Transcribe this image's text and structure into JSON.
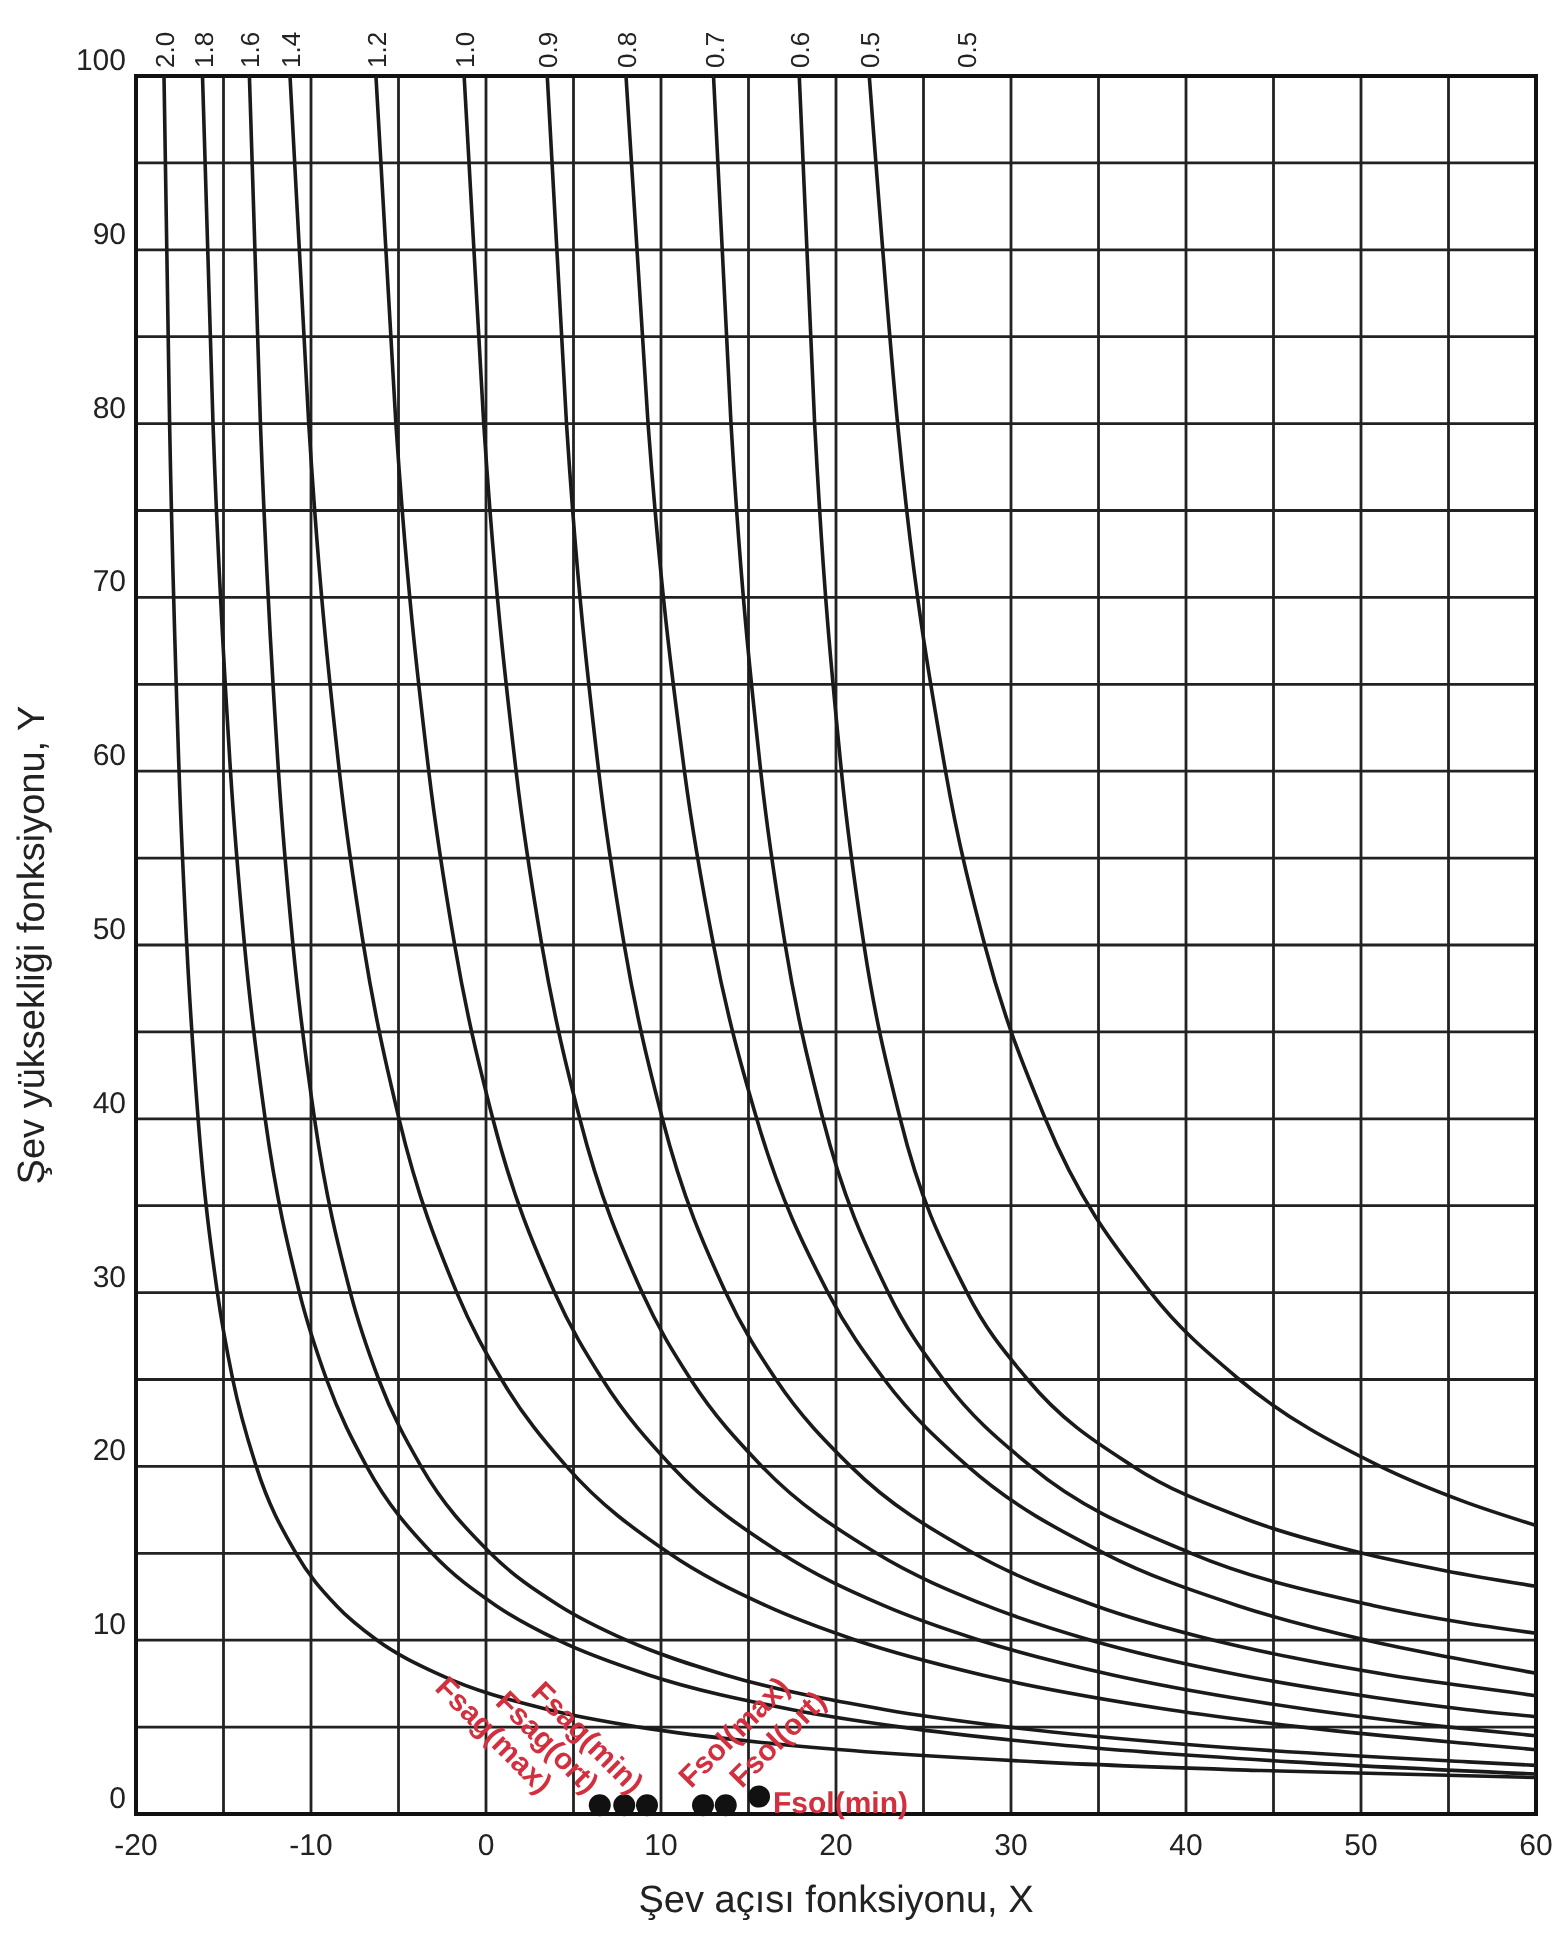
{
  "chart_data": {
    "type": "line",
    "xlabel": "Şev açısı fonksiyonu, X",
    "ylabel": "Şev yüksekliği fonksiyonu, Y",
    "xlim": [
      -20,
      60
    ],
    "ylim": [
      0,
      100
    ],
    "xticks": [
      -20,
      {
        "value": -15,
        "label": null
      },
      -10,
      {
        "value": -5,
        "label": null
      },
      0,
      {
        "value": 5,
        "label": null
      },
      10,
      {
        "value": 15,
        "label": null
      },
      20,
      {
        "value": 25,
        "label": null
      },
      30,
      {
        "value": 35,
        "label": null
      },
      40,
      {
        "value": 45,
        "label": null
      },
      50,
      {
        "value": 55,
        "label": null
      },
      60
    ],
    "yticks": [
      0,
      {
        "value": 5,
        "label": null
      },
      10,
      {
        "value": 15,
        "label": null
      },
      20,
      {
        "value": 25,
        "label": null
      },
      30,
      {
        "value": 35,
        "label": null
      },
      40,
      {
        "value": 45,
        "label": null
      },
      50,
      {
        "value": 55,
        "label": null
      },
      60,
      {
        "value": 65,
        "label": null
      },
      70,
      {
        "value": 75,
        "label": null
      },
      80,
      {
        "value": 85,
        "label": null
      },
      90,
      {
        "value": 95,
        "label": null
      },
      100
    ],
    "grid": true,
    "line_style": "solid",
    "marker": "none",
    "series": [
      {
        "name": "2.0",
        "color": "#1a1a1a",
        "x": [
          -18.4,
          -18.08,
          -17.54,
          -17.1,
          -16.45,
          -15.35,
          -14.47,
          -13.13,
          -10.86,
          -8.56,
          -6.22,
          -2.62,
          3.58,
          8.75,
          16.88,
          31.51,
          44.31,
          60
        ],
        "values": [
          100,
          80,
          60,
          50,
          40,
          30,
          25,
          20,
          15,
          12,
          10,
          8,
          6,
          5,
          4,
          3,
          2.5,
          2.1
        ]
      },
      {
        "name": "1.8",
        "color": "#1a1a1a",
        "x": [
          -16.2,
          -15.6,
          -14.6,
          -13.8,
          -12.62,
          -10.66,
          -9.11,
          -6.82,
          -3.08,
          0.56,
          4.12,
          9.29,
          17.51,
          23.74,
          32.57,
          46.04,
          60
        ],
        "values": [
          100,
          80,
          60,
          50,
          40,
          30,
          25,
          20,
          15,
          12,
          10,
          8,
          6,
          5,
          4,
          3,
          2.3
        ]
      },
      {
        "name": "1.6",
        "color": "#1a1a1a",
        "x": [
          -13.52,
          -12.89,
          -11.86,
          -11.03,
          -9.8,
          -7.75,
          -6.13,
          -3.71,
          0.26,
          4.17,
          8.02,
          13.68,
          22.82,
          29.88,
          40.08,
          56.11,
          60
        ],
        "values": [
          100,
          80,
          60,
          50,
          40,
          30,
          25,
          20,
          15,
          12,
          10,
          8,
          6,
          5,
          4,
          3,
          2.8
        ]
      },
      {
        "name": "1.4",
        "color": "#1a1a1a",
        "x": [
          -11.2,
          -10.13,
          -8.38,
          -7.0,
          -4.97,
          -1.67,
          0.89,
          4.6,
          10.47,
          15.97,
          21.14,
          28.35,
          39.06,
          46.65,
          56.69,
          60
        ],
        "values": [
          100,
          80,
          60,
          50,
          40,
          30,
          25,
          20,
          15,
          12,
          10,
          8,
          6,
          5,
          4,
          3.7
        ]
      },
      {
        "name": "1.2",
        "color": "#1a1a1a",
        "x": [
          -6.29,
          -5.15,
          -3.27,
          -1.79,
          0.39,
          3.92,
          6.66,
          10.62,
          16.87,
          22.71,
          28.2,
          35.81,
          40.84,
          47.09,
          55.05,
          60
        ],
        "values": [
          100,
          80,
          60,
          50,
          40,
          30,
          25,
          20,
          15,
          12,
          10,
          8,
          7,
          6,
          5,
          4.5
        ]
      },
      {
        "name": "1.0",
        "color": "#1a1a1a",
        "x": [
          -1.25,
          -0.13,
          1.72,
          3.19,
          5.36,
          8.92,
          11.7,
          15.77,
          22.32,
          28.58,
          34.56,
          43.06,
          48.82,
          56.1,
          60
        ],
        "values": [
          100,
          80,
          60,
          50,
          40,
          30,
          25,
          20,
          15,
          12,
          10,
          8,
          7,
          6,
          5.6
        ]
      },
      {
        "name": "0.9",
        "color": "#1a1a1a",
        "x": [
          3.5,
          4.6,
          6.44,
          7.9,
          10.08,
          13.7,
          16.57,
          20.84,
          27.87,
          34.79,
          41.59,
          46.07,
          51.6,
          58.6,
          60
        ],
        "values": [
          100,
          80,
          60,
          50,
          40,
          30,
          25,
          20,
          15,
          12,
          10,
          9,
          8,
          7,
          6.8
        ]
      },
      {
        "name": "0.8",
        "color": "#1a1a1a",
        "x": [
          8.0,
          9.26,
          11.34,
          13.0,
          15.47,
          19.54,
          22.76,
          27.54,
          35.33,
          42.92,
          50.33,
          55.16,
          60
        ],
        "values": [
          100,
          80,
          60,
          50,
          40,
          30,
          25,
          20,
          15,
          12,
          10,
          9,
          8.1
        ]
      },
      {
        "name": "0.7",
        "color": "#1a1a1a",
        "x": [
          13.0,
          14.0,
          15.7,
          17.1,
          19.25,
          22.99,
          26.14,
          31.13,
          40.3,
          50.68,
          55.87,
          60
        ],
        "values": [
          100,
          80,
          60,
          50,
          40,
          30,
          25,
          20,
          15,
          12,
          11,
          10.4
        ]
      },
      {
        "name": "0.6",
        "color": "#1a1a1a",
        "x": [
          17.9,
          18.78,
          20.31,
          21.6,
          23.67,
          27.49,
          30.95,
          36.98,
          43.35,
          50.09,
          54.81,
          60
        ],
        "values": [
          100,
          80,
          60,
          50,
          40,
          30,
          25,
          20,
          17,
          15,
          14,
          13.1
        ]
      },
      {
        "name": "0.5",
        "color": "#1a1a1a",
        "x": [
          21.9,
          23.52,
          26.26,
          28.5,
          31.96,
          37.99,
          43.05,
          51.1,
          55.82,
          60
        ],
        "values": [
          100,
          80,
          60,
          50,
          40,
          30,
          25,
          20,
          18,
          16.6
        ]
      },
      {
        "type": "scatter",
        "color": "#111111",
        "marker": "circle",
        "x": [
          6.5,
          7.9,
          9.2,
          12.4,
          13.7,
          15.6
        ],
        "values": [
          0.5,
          0.5,
          0.5,
          0.5,
          0.5,
          1
        ]
      }
    ],
    "annotations": [
      {
        "text": "Fsag(max)",
        "x": 6.5,
        "y": 0.5
      },
      {
        "text": "Fsag(ort)",
        "x": 7.9,
        "y": 0.5
      },
      {
        "text": "Fsag(min)",
        "x": 9.2,
        "y": 0.5
      },
      {
        "text": "Fsol(max)",
        "x": 12.4,
        "y": 0.5
      },
      {
        "text": "Fsol(ort)",
        "x": 13.7,
        "y": 0.5
      },
      {
        "text": "Fsol(min)",
        "x": 15.6,
        "y": 1
      },
      "0.5"
    ]
  }
}
